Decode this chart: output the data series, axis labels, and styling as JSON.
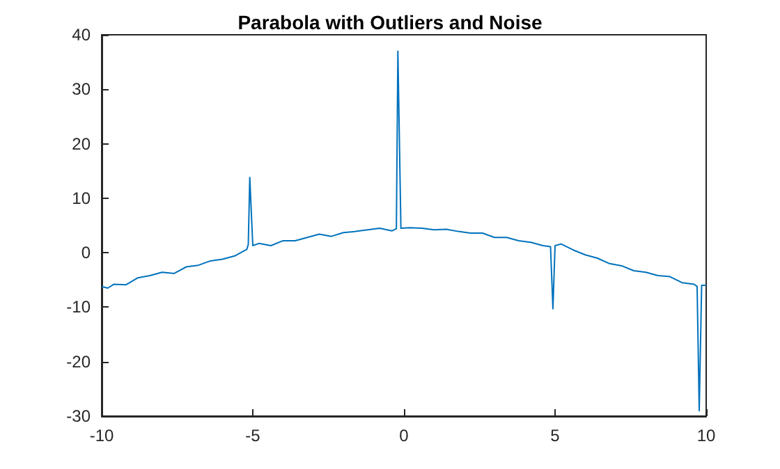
{
  "chart_data": {
    "type": "line",
    "title": "Parabola with Outliers and Noise",
    "xlim": [
      -10,
      10
    ],
    "xticks": [
      -10,
      -5,
      0,
      5,
      10
    ],
    "ylim": [
      -30,
      40
    ],
    "yticks": [
      -30,
      -20,
      -10,
      0,
      10,
      20,
      30,
      40
    ],
    "grid": false,
    "marker": "none",
    "line_style": "solid",
    "series": [
      {
        "color": "#0072bd",
        "x": [
          -10,
          -9.8,
          -9.6,
          -9.2,
          -8.8,
          -8.4,
          -8.0,
          -7.6,
          -7.2,
          -6.8,
          -6.4,
          -6.0,
          -5.6,
          -5.4,
          -5.2,
          -5.15,
          -5.1,
          -5.0,
          -4.8,
          -4.4,
          -4.0,
          -3.6,
          -3.2,
          -2.8,
          -2.4,
          -2.0,
          -1.6,
          -1.2,
          -0.8,
          -0.4,
          -0.25,
          -0.2,
          -0.1,
          0.2,
          0.6,
          1.0,
          1.4,
          1.8,
          2.2,
          2.6,
          3.0,
          3.4,
          3.8,
          4.2,
          4.6,
          4.85,
          4.93,
          5.0,
          5.2,
          5.6,
          6.0,
          6.4,
          6.8,
          7.2,
          7.6,
          8.0,
          8.4,
          8.8,
          9.2,
          9.6,
          9.7,
          9.77,
          9.85,
          10
        ],
        "values": [
          -6.2,
          -6.5,
          -5.8,
          -5.9,
          -4.6,
          -4.2,
          -3.6,
          -3.8,
          -2.6,
          -2.3,
          -1.5,
          -1.2,
          -0.6,
          0.0,
          0.6,
          1.5,
          13.8,
          1.3,
          1.7,
          1.3,
          2.2,
          2.2,
          2.8,
          3.4,
          3.0,
          3.7,
          3.9,
          4.2,
          4.5,
          4.0,
          4.4,
          37,
          4.5,
          4.6,
          4.5,
          4.2,
          4.3,
          3.9,
          3.6,
          3.6,
          2.8,
          2.8,
          2.2,
          1.9,
          1.3,
          1.1,
          -10.3,
          1.3,
          1.6,
          0.5,
          -0.4,
          -1.0,
          -2.0,
          -2.4,
          -3.3,
          -3.6,
          -4.2,
          -4.4,
          -5.5,
          -5.8,
          -6.2,
          -29,
          -6.0,
          -6.0
        ]
      }
    ]
  }
}
